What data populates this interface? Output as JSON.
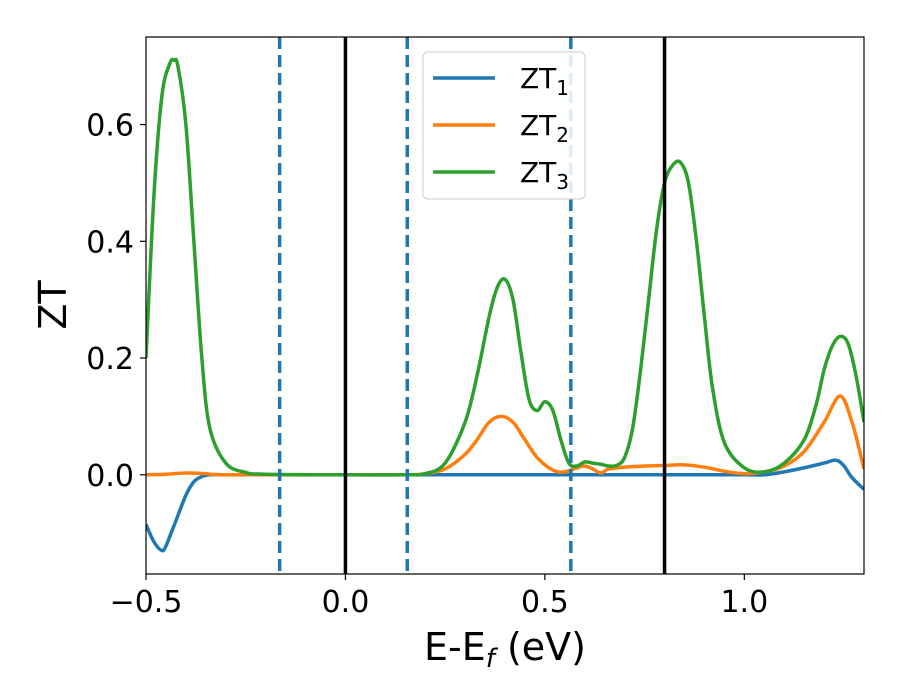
{
  "chart_data": {
    "type": "line",
    "title": "",
    "xlabel": "E-E",
    "xlabel_sub": "f",
    "xlabel_unit": " (eV)",
    "ylabel": "ZT",
    "xlim": [
      -0.5,
      1.3
    ],
    "ylim": [
      -0.17,
      0.75
    ],
    "xticks": [
      -0.5,
      0.0,
      0.5,
      1.0
    ],
    "xtick_labels": [
      "−0.5",
      "0.0",
      "0.5",
      "1.0"
    ],
    "yticks": [
      0.0,
      0.2,
      0.4,
      0.6
    ],
    "ytick_labels": [
      "0.0",
      "0.2",
      "0.4",
      "0.6"
    ],
    "grid": false,
    "legend_position": "top-center",
    "vlines_solid": [
      0.0,
      0.8
    ],
    "vlines_dashed": [
      -0.165,
      0.155,
      0.565
    ],
    "series": [
      {
        "name": "ZT",
        "name_sub": "1",
        "color": "#1f77b4",
        "x": [
          -0.5,
          -0.48,
          -0.46,
          -0.45,
          -0.44,
          -0.42,
          -0.4,
          -0.38,
          -0.36,
          -0.34,
          -0.3,
          -0.2,
          0.0,
          0.2,
          0.4,
          0.6,
          0.8,
          0.9,
          1.0,
          1.05,
          1.1,
          1.15,
          1.2,
          1.23,
          1.25,
          1.27,
          1.3
        ],
        "y": [
          -0.085,
          -0.115,
          -0.13,
          -0.122,
          -0.105,
          -0.07,
          -0.035,
          -0.012,
          -0.003,
          0.0,
          0.0,
          0.0,
          0.0,
          0.0,
          0.0,
          0.0,
          0.0,
          0.0,
          0.0,
          0.0,
          0.005,
          0.012,
          0.02,
          0.025,
          0.015,
          -0.005,
          -0.025
        ]
      },
      {
        "name": "ZT",
        "name_sub": "2",
        "color": "#ff7f0e",
        "x": [
          -0.5,
          -0.45,
          -0.4,
          -0.35,
          -0.3,
          0.0,
          0.15,
          0.2,
          0.25,
          0.3,
          0.33,
          0.36,
          0.39,
          0.42,
          0.45,
          0.48,
          0.52,
          0.55,
          0.58,
          0.6,
          0.62,
          0.64,
          0.66,
          0.7,
          0.75,
          0.8,
          0.85,
          0.9,
          0.95,
          1.0,
          1.05,
          1.1,
          1.15,
          1.2,
          1.24,
          1.27,
          1.3
        ],
        "y": [
          0.0,
          0.001,
          0.003,
          0.002,
          0.0,
          0.0,
          0.0,
          0.002,
          0.01,
          0.035,
          0.06,
          0.09,
          0.1,
          0.09,
          0.06,
          0.03,
          0.008,
          0.005,
          0.012,
          0.015,
          0.01,
          0.003,
          0.01,
          0.013,
          0.015,
          0.016,
          0.017,
          0.013,
          0.006,
          0.002,
          0.005,
          0.015,
          0.04,
          0.09,
          0.135,
          0.09,
          0.01
        ]
      },
      {
        "name": "ZT",
        "name_sub": "3",
        "color": "#2ca02c",
        "x": [
          -0.5,
          -0.48,
          -0.46,
          -0.44,
          -0.43,
          -0.42,
          -0.4,
          -0.38,
          -0.36,
          -0.34,
          -0.3,
          -0.25,
          -0.2,
          0.0,
          0.15,
          0.2,
          0.25,
          0.3,
          0.33,
          0.36,
          0.38,
          0.4,
          0.42,
          0.44,
          0.46,
          0.48,
          0.5,
          0.52,
          0.54,
          0.56,
          0.58,
          0.6,
          0.62,
          0.64,
          0.66,
          0.68,
          0.7,
          0.72,
          0.74,
          0.76,
          0.78,
          0.8,
          0.82,
          0.84,
          0.86,
          0.88,
          0.9,
          0.92,
          0.95,
          1.0,
          1.05,
          1.1,
          1.15,
          1.18,
          1.2,
          1.22,
          1.24,
          1.26,
          1.28,
          1.3
        ],
        "y": [
          0.2,
          0.48,
          0.65,
          0.705,
          0.71,
          0.7,
          0.6,
          0.4,
          0.2,
          0.08,
          0.02,
          0.004,
          0.001,
          0.0,
          0.0,
          0.002,
          0.02,
          0.09,
          0.17,
          0.27,
          0.32,
          0.335,
          0.3,
          0.21,
          0.13,
          0.11,
          0.125,
          0.11,
          0.06,
          0.02,
          0.015,
          0.022,
          0.02,
          0.018,
          0.015,
          0.016,
          0.03,
          0.08,
          0.18,
          0.3,
          0.42,
          0.5,
          0.53,
          0.535,
          0.5,
          0.4,
          0.27,
          0.15,
          0.055,
          0.012,
          0.005,
          0.02,
          0.06,
          0.12,
          0.18,
          0.22,
          0.237,
          0.225,
          0.17,
          0.09
        ]
      }
    ]
  }
}
